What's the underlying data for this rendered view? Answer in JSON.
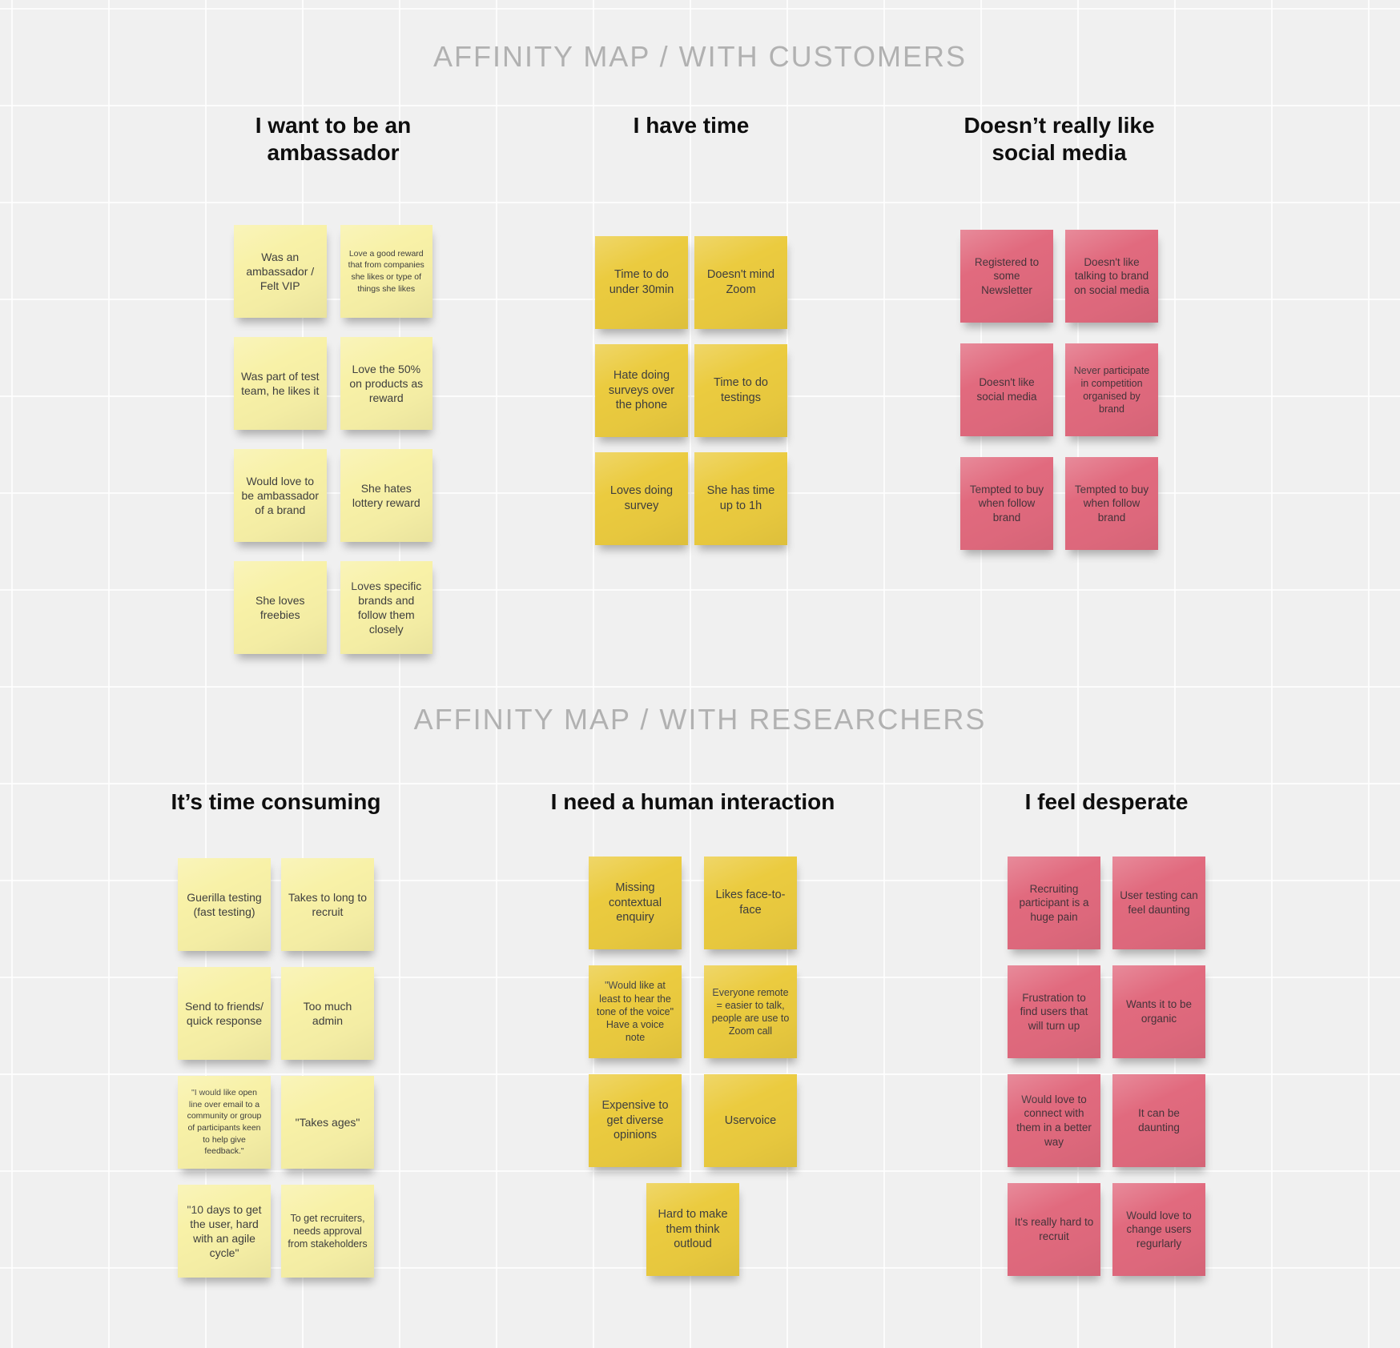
{
  "board": {
    "sections": [
      {
        "title": "AFFINITY MAP / WITH CUSTOMERS",
        "groups": [
          {
            "header": "I want to be an ambassador",
            "theme": "pale",
            "notes": [
              {
                "text": "Was an ambassador / Felt VIP"
              },
              {
                "text": "Love a good reward that from companies she likes or type of things she likes",
                "size": "xs"
              },
              {
                "text": "Was part of test team, he likes it"
              },
              {
                "text": "Love the 50% on products as reward"
              },
              {
                "text": "Would love to be ambassador of a brand"
              },
              {
                "text": "She hates lottery reward"
              },
              {
                "text": "She loves freebies"
              },
              {
                "text": "Loves specific brands and follow them closely"
              }
            ]
          },
          {
            "header": "I have time",
            "theme": "gold",
            "notes": [
              {
                "text": "Time to do under 30min"
              },
              {
                "text": "Doesn't mind Zoom"
              },
              {
                "text": "Hate doing surveys over the phone"
              },
              {
                "text": "Time to do testings"
              },
              {
                "text": "Loves doing survey"
              },
              {
                "text": "She has time up to 1h"
              }
            ]
          },
          {
            "header": "Doesn’t really like social media",
            "theme": "pink",
            "notes": [
              {
                "text": "Registered to some Newsletter"
              },
              {
                "text": "Doesn't like talking to brand on social media"
              },
              {
                "text": "Doesn't like social media"
              },
              {
                "text": "Never participate in competition organised by brand",
                "size": "sm"
              },
              {
                "text": "Tempted to buy when follow brand"
              },
              {
                "text": "Tempted to buy when follow brand"
              }
            ]
          }
        ]
      },
      {
        "title": "AFFINITY MAP / WITH RESEARCHERS",
        "groups": [
          {
            "header": "It’s time consuming",
            "theme": "pale",
            "notes": [
              {
                "text": "Guerilla testing (fast testing)"
              },
              {
                "text": "Takes to long to recruit"
              },
              {
                "text": "Send to friends/ quick response"
              },
              {
                "text": "Too much admin"
              },
              {
                "text": "\"I would like open line over email to a community or group of participants keen to help give feedback.\"",
                "size": "xs"
              },
              {
                "text": "\"Takes ages\""
              },
              {
                "text": "\"10 days to get the user, hard with an agile cycle\""
              },
              {
                "text": "To get recruiters, needs approval from stakeholders",
                "size": "sm"
              }
            ]
          },
          {
            "header": "I need a human interaction",
            "theme": "gold",
            "notes": [
              {
                "text": "Missing contextual enquiry"
              },
              {
                "text": "Likes face-to-face"
              },
              {
                "text": "\"Would like at least to hear the tone of the voice\" Have a voice note",
                "size": "sm"
              },
              {
                "text": "Everyone remote = easier to talk, people are use to Zoom call",
                "size": "sm"
              },
              {
                "text": "Expensive to get diverse opinions"
              },
              {
                "text": "Uservoice"
              },
              {
                "text": "Hard to make them think outloud",
                "span": true
              }
            ]
          },
          {
            "header": "I feel desperate",
            "theme": "pink",
            "notes": [
              {
                "text": "Recruiting participant is a huge pain"
              },
              {
                "text": "User testing can feel daunting"
              },
              {
                "text": "Frustration to find users that will turn up"
              },
              {
                "text": "Wants it to be organic"
              },
              {
                "text": "Would love to connect with them in a better way"
              },
              {
                "text": "It can be daunting"
              },
              {
                "text": "It's really hard to recruit"
              },
              {
                "text": "Would love to change users regurlarly"
              }
            ]
          }
        ]
      }
    ]
  },
  "colors": {
    "background": "#f0f0f0",
    "note_pale": "#f8f1a7",
    "note_gold": "#ebcb3f",
    "note_pink": "#e16a7e",
    "section_title_text": "#b1b1b1",
    "group_header_text": "#0e0e0e",
    "note_text": "#3e3e3e"
  }
}
